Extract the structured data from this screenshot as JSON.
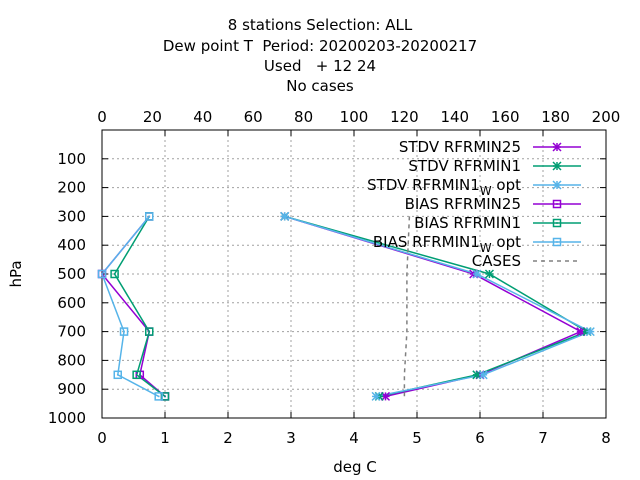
{
  "chart_data": {
    "type": "line",
    "title_lines": [
      "8 stations Selection: ALL",
      "Dew point T  Period: 20200203-20200217",
      "Used   + 12 24",
      "No cases"
    ],
    "xlabel": "deg C",
    "ylabel": "hPa",
    "xlim": [
      0,
      8
    ],
    "ylim": [
      1000,
      0
    ],
    "x2lim": [
      0,
      200
    ],
    "xticks": [
      "0",
      "1",
      "2",
      "3",
      "4",
      "5",
      "6",
      "7",
      "8"
    ],
    "x2ticks": [
      "0",
      "20",
      "40",
      "60",
      "80",
      "100",
      "120",
      "140",
      "160",
      "180",
      "200"
    ],
    "yticks": [
      "100",
      "200",
      "300",
      "400",
      "500",
      "600",
      "700",
      "800",
      "900",
      "1000"
    ],
    "grid": true,
    "legend_position": "top-right",
    "series": [
      {
        "name": "STDV RFRMIN25",
        "legend": [
          "STDV RFRMIN25"
        ],
        "color": "#9400d3",
        "marker": "star",
        "dash": "",
        "points": [
          [
            2.9,
            300
          ],
          [
            5.9,
            500
          ],
          [
            7.6,
            700
          ],
          [
            6.0,
            850
          ],
          [
            4.5,
            925
          ]
        ]
      },
      {
        "name": "STDV RFRMIN1",
        "legend": [
          "STDV RFRMIN1"
        ],
        "color": "#009e73",
        "marker": "star",
        "dash": "",
        "points": [
          [
            2.9,
            300
          ],
          [
            6.15,
            500
          ],
          [
            7.7,
            700
          ],
          [
            5.95,
            850
          ],
          [
            4.4,
            925
          ]
        ]
      },
      {
        "name": "STDV RFRMIN1_W opt",
        "legend": [
          "STDV RFRMIN1",
          "W",
          " opt"
        ],
        "color": "#56b4e9",
        "marker": "star",
        "dash": "",
        "points": [
          [
            2.9,
            300
          ],
          [
            5.95,
            500
          ],
          [
            7.75,
            700
          ],
          [
            6.05,
            850
          ],
          [
            4.35,
            925
          ]
        ]
      },
      {
        "name": "BIAS RFRMIN25",
        "legend": [
          "BIAS RFRMIN25"
        ],
        "color": "#9400d3",
        "marker": "square",
        "dash": "",
        "points": [
          [
            0.75,
            300
          ],
          [
            0.0,
            500
          ],
          [
            0.75,
            700
          ],
          [
            0.6,
            850
          ],
          [
            1.0,
            925
          ]
        ]
      },
      {
        "name": "BIAS RFRMIN1",
        "legend": [
          "BIAS RFRMIN1"
        ],
        "color": "#009e73",
        "marker": "square",
        "dash": "",
        "points": [
          [
            0.75,
            300
          ],
          [
            0.2,
            500
          ],
          [
            0.75,
            700
          ],
          [
            0.55,
            850
          ],
          [
            1.0,
            925
          ]
        ]
      },
      {
        "name": "BIAS RFRMIN1_W opt",
        "legend": [
          "BIAS RFRMIN1",
          "W",
          " opt"
        ],
        "color": "#56b4e9",
        "marker": "square",
        "dash": "",
        "points": [
          [
            0.75,
            300
          ],
          [
            0.0,
            500
          ],
          [
            0.35,
            700
          ],
          [
            0.25,
            850
          ],
          [
            0.9,
            925
          ]
        ]
      },
      {
        "name": "CASES",
        "legend": [
          "CASES"
        ],
        "color": "#808080",
        "marker": "none",
        "dash": "4,4",
        "axis": "x2",
        "points": [
          [
            122,
            300
          ],
          [
            121,
            500
          ],
          [
            121,
            700
          ],
          [
            120,
            850
          ],
          [
            120,
            925
          ]
        ]
      }
    ]
  }
}
